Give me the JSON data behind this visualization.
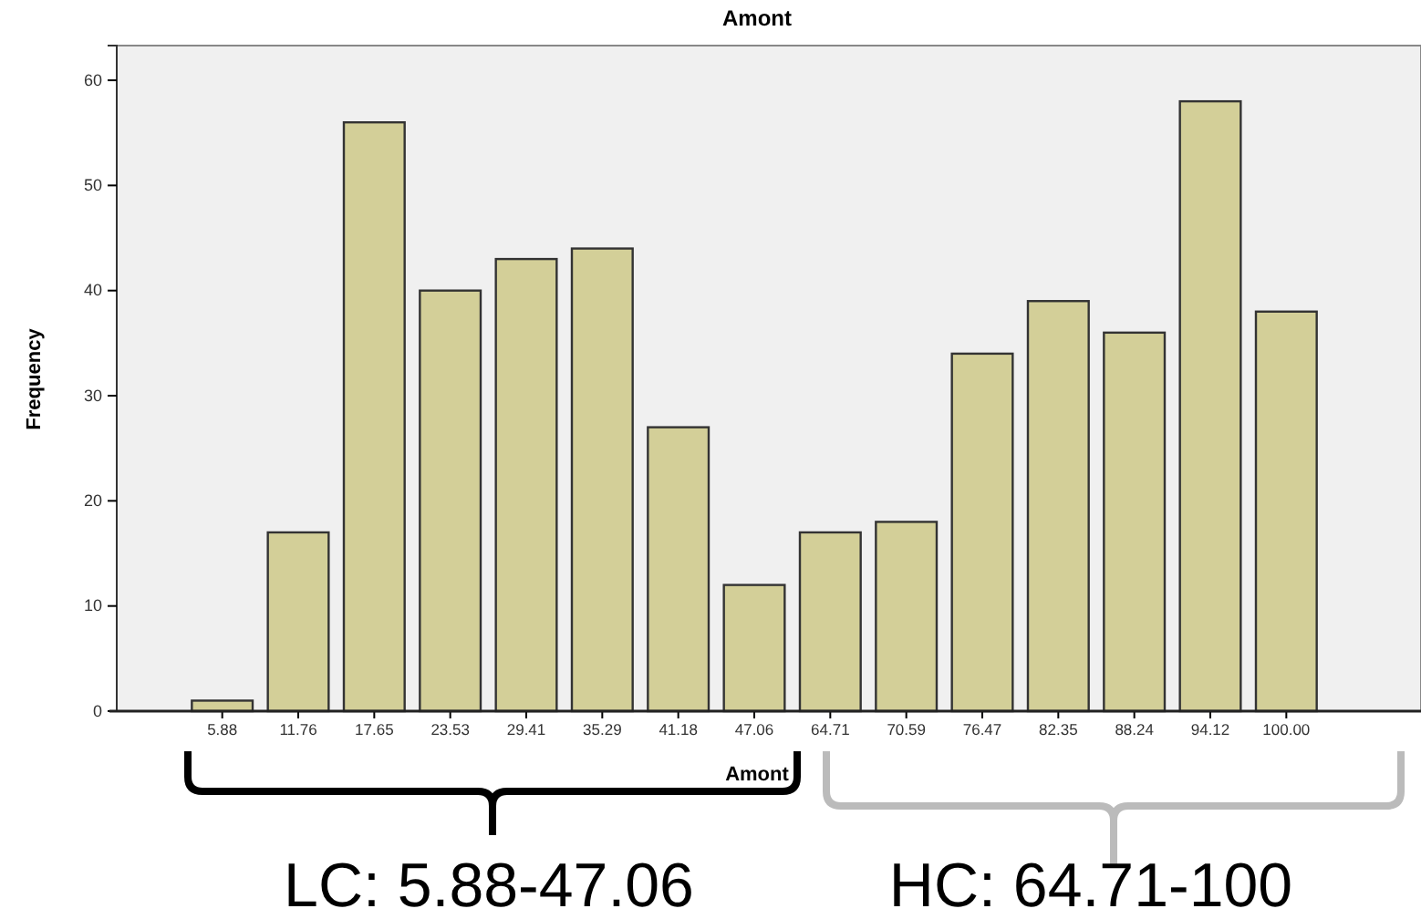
{
  "chart_data": {
    "type": "bar",
    "title": "Amont",
    "xlabel": "Amont",
    "ylabel": "Frequency",
    "categories": [
      "5.88",
      "11.76",
      "17.65",
      "23.53",
      "29.41",
      "35.29",
      "41.18",
      "47.06",
      "64.71",
      "70.59",
      "76.47",
      "82.35",
      "88.24",
      "94.12",
      "100.00"
    ],
    "values": [
      1,
      17,
      56,
      40,
      43,
      44,
      27,
      12,
      17,
      18,
      34,
      39,
      36,
      58,
      38
    ],
    "color": "#d3cf98",
    "ylim": [
      0,
      63.3
    ],
    "yticks": [
      0,
      10,
      20,
      30,
      40,
      50,
      60
    ],
    "grid": false,
    "annotations": [
      "LC: 5.88-47.06",
      "HC: 64.71-100"
    ]
  }
}
